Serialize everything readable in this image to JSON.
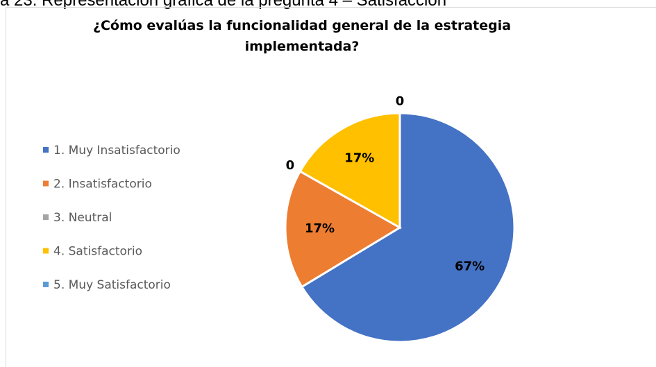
{
  "caption": "a 23. Representación gráfica de la pregunta 4 – Satisfacción",
  "chart_data": {
    "type": "pie",
    "title": "¿Cómo evalúas la funcionalidad general de la estrategia implementada?",
    "categories": [
      "1. Muy Insatisfactorio",
      "2. Insatisfactorio",
      "3. Neutral",
      "4. Satisfactorio",
      "5. Muy Satisfactorio"
    ],
    "values": [
      67,
      17,
      0,
      17,
      0
    ],
    "value_labels": [
      "67%",
      "17%",
      "0",
      "17%",
      "0"
    ],
    "colors": [
      "#4472c4",
      "#ed7d31",
      "#a5a5a5",
      "#ffc000",
      "#5b9bd5"
    ],
    "legend": "left"
  }
}
